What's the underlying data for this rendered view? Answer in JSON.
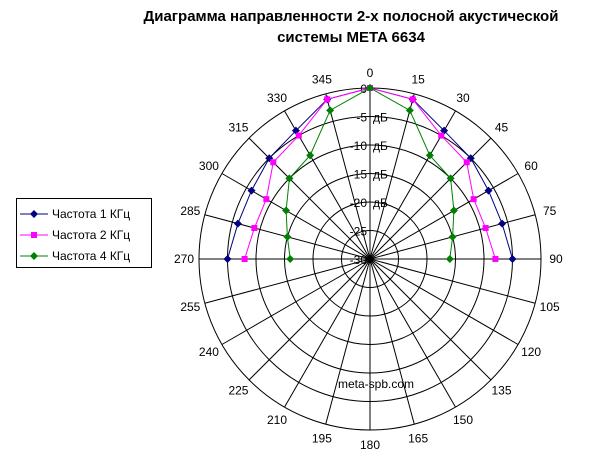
{
  "chart_data": {
    "type": "polar-line",
    "title_line1": "Диаграмма направленности 2-х полосной акустической",
    "title_line2": "системы  META 6634",
    "angle_ticks": [
      0,
      15,
      30,
      45,
      60,
      75,
      90,
      105,
      120,
      135,
      150,
      165,
      180,
      195,
      210,
      225,
      240,
      255,
      270,
      285,
      300,
      315,
      330,
      345
    ],
    "radial_labels": [
      "0",
      "-5",
      "-10",
      "-15",
      "-20",
      "-25",
      "-30"
    ],
    "radial_unit": "дБ",
    "rlim": [
      -30,
      0
    ],
    "grid": true,
    "legend_position": "left",
    "watermark": "meta-spb.com",
    "series": [
      {
        "name": "Частота 1 КГц",
        "color": "#000080",
        "marker": "diamond",
        "points": [
          [
            270,
            -5
          ],
          [
            285,
            -6
          ],
          [
            300,
            -6
          ],
          [
            315,
            -5
          ],
          [
            330,
            -4
          ],
          [
            345,
            -1
          ],
          [
            0,
            0
          ],
          [
            15,
            -1
          ],
          [
            30,
            -4
          ],
          [
            45,
            -5
          ],
          [
            60,
            -6
          ],
          [
            75,
            -6
          ],
          [
            90,
            -5
          ]
        ]
      },
      {
        "name": "Частота 2 КГц",
        "color": "#ff00ff",
        "marker": "square",
        "points": [
          [
            270,
            -8
          ],
          [
            285,
            -9
          ],
          [
            300,
            -9
          ],
          [
            315,
            -6
          ],
          [
            330,
            -5
          ],
          [
            345,
            -1
          ],
          [
            0,
            0
          ],
          [
            15,
            -1
          ],
          [
            30,
            -5
          ],
          [
            45,
            -6
          ],
          [
            60,
            -9
          ],
          [
            75,
            -9
          ],
          [
            90,
            -8
          ]
        ]
      },
      {
        "name": "Частота 4 КГц",
        "color": "#008000",
        "marker": "diamond",
        "points": [
          [
            270,
            -16
          ],
          [
            285,
            -15
          ],
          [
            300,
            -13
          ],
          [
            315,
            -10
          ],
          [
            330,
            -9
          ],
          [
            345,
            -3
          ],
          [
            0,
            0
          ],
          [
            15,
            -3
          ],
          [
            30,
            -9
          ],
          [
            45,
            -10
          ],
          [
            60,
            -13
          ],
          [
            75,
            -15
          ],
          [
            90,
            -16
          ]
        ]
      }
    ]
  }
}
